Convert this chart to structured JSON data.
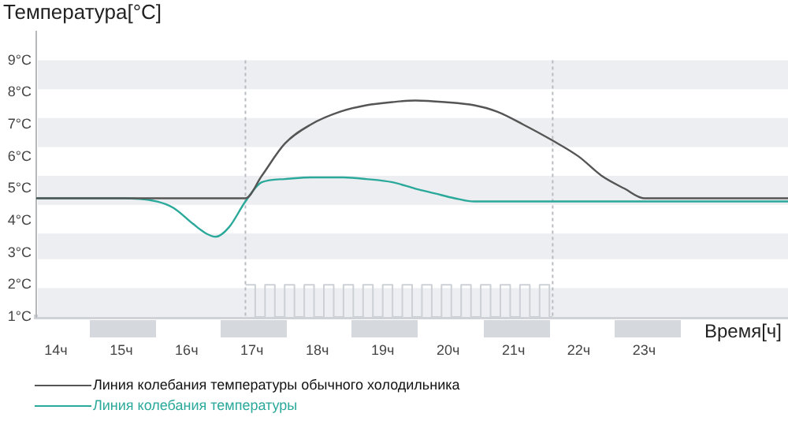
{
  "chart_data": {
    "type": "line",
    "ylabel": "Температура[°C]",
    "xlabel": "Время[ч]",
    "xlim": [
      13.7,
      25.2
    ],
    "ylim": [
      1,
      9.9
    ],
    "xticks": [
      {
        "value": 14,
        "label": "14ч"
      },
      {
        "value": 15,
        "label": "15ч"
      },
      {
        "value": 16,
        "label": "16ч"
      },
      {
        "value": 17,
        "label": "17ч"
      },
      {
        "value": 18,
        "label": "18ч"
      },
      {
        "value": 19,
        "label": "19ч"
      },
      {
        "value": 20,
        "label": "20ч"
      },
      {
        "value": 21,
        "label": "21ч"
      },
      {
        "value": 22,
        "label": "22ч"
      },
      {
        "value": 23,
        "label": "23ч"
      }
    ],
    "yticks": [
      {
        "value": 1,
        "label": "1°C"
      },
      {
        "value": 2,
        "label": "2°C"
      },
      {
        "value": 3,
        "label": "3°C"
      },
      {
        "value": 4,
        "label": "4°C"
      },
      {
        "value": 5,
        "label": "5°C"
      },
      {
        "value": 6,
        "label": "6°C"
      },
      {
        "value": 7,
        "label": "7°C"
      },
      {
        "value": 8,
        "label": "8°C"
      },
      {
        "value": 9,
        "label": "9°C"
      }
    ],
    "marker": "none",
    "legend": "bottom left",
    "series": [
      {
        "name": "Линия колебания температуры обычного холодильника",
        "color": "#555555",
        "x": [
          13.7,
          16.9,
          17.15,
          17.5,
          17.9,
          18.35,
          18.75,
          19.15,
          19.5,
          19.95,
          20.4,
          20.75,
          21.15,
          21.6,
          22.0,
          22.35,
          22.7,
          23.0,
          25.2
        ],
        "values": [
          4.7,
          4.7,
          5.4,
          6.4,
          7.0,
          7.4,
          7.6,
          7.7,
          7.75,
          7.7,
          7.6,
          7.4,
          7.0,
          6.5,
          6.0,
          5.4,
          5.0,
          4.7,
          4.7
        ]
      },
      {
        "name": "Линия колебания температуры",
        "color": "#2aa99a",
        "x": [
          13.7,
          15.0,
          15.55,
          15.8,
          16.1,
          16.3,
          16.45,
          16.65,
          16.9,
          17.15,
          17.5,
          17.9,
          18.4,
          18.75,
          19.15,
          19.5,
          19.8,
          20.1,
          20.4,
          21.1,
          25.2
        ],
        "values": [
          4.7,
          4.7,
          4.6,
          4.4,
          3.9,
          3.6,
          3.5,
          3.8,
          4.6,
          5.2,
          5.3,
          5.35,
          5.35,
          5.3,
          5.2,
          5.0,
          4.85,
          4.7,
          4.6,
          4.6,
          4.6
        ]
      },
      {
        "type": "step",
        "color": "#cdd1d6",
        "x": [
          16.9,
          17.05,
          17.2,
          17.35,
          17.5,
          17.65,
          17.8,
          17.95,
          18.1,
          18.25,
          18.4,
          18.55,
          18.7,
          18.85,
          19.0,
          19.15,
          19.3,
          19.45,
          19.6,
          19.75,
          19.9,
          20.05,
          20.2,
          20.35,
          20.5,
          20.65,
          20.8,
          20.95,
          21.1,
          21.25,
          21.4,
          21.55,
          21.6
        ],
        "values": [
          2,
          1,
          2,
          1,
          2,
          1,
          2,
          1,
          2,
          1,
          2,
          1,
          2,
          1,
          2,
          1,
          2,
          1,
          2,
          1,
          2,
          1,
          2,
          1,
          2,
          1,
          2,
          1,
          2,
          1,
          2,
          1,
          1
        ]
      }
    ],
    "ref_lines": [
      {
        "axis": "x",
        "value": 16.9,
        "color": "#b8bcc2",
        "line_style": "dotted"
      },
      {
        "axis": "x",
        "value": 21.6,
        "color": "#b8bcc2",
        "line_style": "dotted"
      }
    ],
    "bands": [
      {
        "axis": "y",
        "from": 8.1,
        "to": 9,
        "color": "#eceef1"
      },
      {
        "axis": "y",
        "from": 6.3,
        "to": 7.2,
        "color": "#eceef1"
      },
      {
        "axis": "y",
        "from": 4.5,
        "to": 5.4,
        "color": "#eceef1"
      },
      {
        "axis": "y",
        "from": 2.8,
        "to": 3.6,
        "color": "#eceef1"
      },
      {
        "axis": "y",
        "from": 1,
        "to": 1.9,
        "color": "#eceef1"
      }
    ]
  }
}
